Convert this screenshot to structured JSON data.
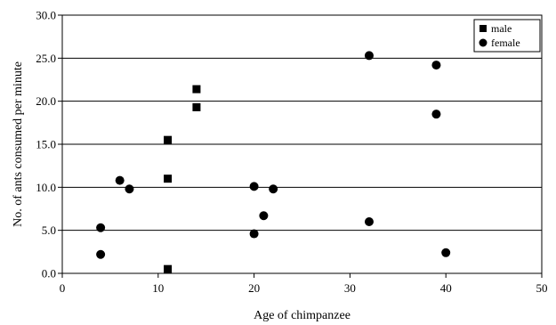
{
  "chart_data": {
    "type": "scatter",
    "xlabel": "Age of chimpanzee",
    "ylabel": "No. of ants consumed per minute",
    "xlim": [
      0,
      50
    ],
    "ylim": [
      0,
      30
    ],
    "x_ticks": [
      0,
      10,
      20,
      30,
      40,
      50
    ],
    "y_ticks": [
      0,
      5,
      10,
      15,
      20,
      25,
      30
    ],
    "x_tick_labels": [
      "0",
      "10",
      "20",
      "30",
      "40",
      "50"
    ],
    "y_tick_labels": [
      "0.0",
      "5.0",
      "10.0",
      "15.0",
      "20.0",
      "25.0",
      "30.0"
    ],
    "grid": "horizontal",
    "legend_position": "top-right",
    "series": [
      {
        "name": "male",
        "marker": "square",
        "points": [
          {
            "x": 11,
            "y": 0.5
          },
          {
            "x": 11,
            "y": 11.0
          },
          {
            "x": 11,
            "y": 15.5
          },
          {
            "x": 14,
            "y": 19.3
          },
          {
            "x": 14,
            "y": 21.4
          }
        ]
      },
      {
        "name": "female",
        "marker": "circle",
        "points": [
          {
            "x": 4,
            "y": 2.2
          },
          {
            "x": 4,
            "y": 5.3
          },
          {
            "x": 6,
            "y": 10.8
          },
          {
            "x": 7,
            "y": 9.8
          },
          {
            "x": 20,
            "y": 4.6
          },
          {
            "x": 20,
            "y": 10.1
          },
          {
            "x": 21,
            "y": 6.7
          },
          {
            "x": 22,
            "y": 9.8
          },
          {
            "x": 32,
            "y": 6.0
          },
          {
            "x": 32,
            "y": 25.3
          },
          {
            "x": 39,
            "y": 18.5
          },
          {
            "x": 39,
            "y": 24.2
          },
          {
            "x": 40,
            "y": 2.4
          }
        ]
      }
    ]
  }
}
